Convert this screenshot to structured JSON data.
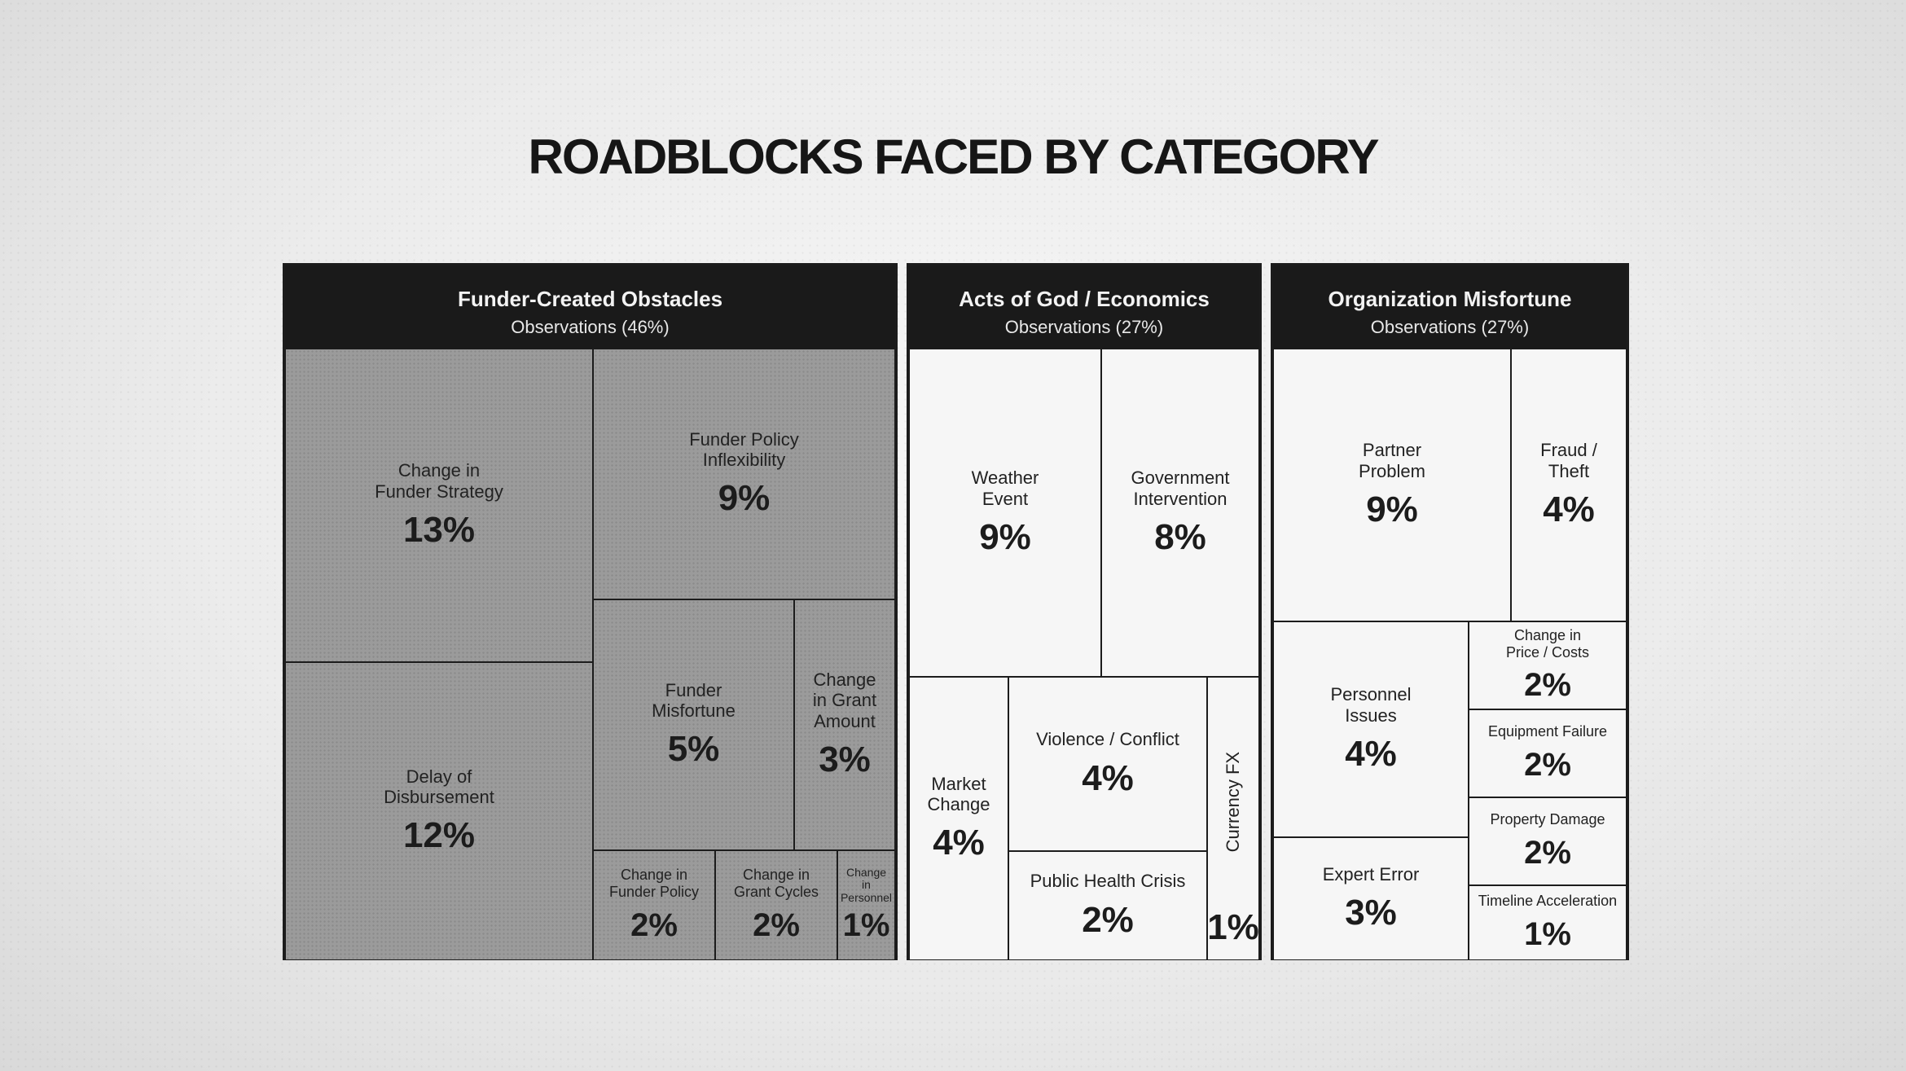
{
  "chart_data": {
    "type": "treemap",
    "title": "ROADBLOCKS FACED BY CATEGORY",
    "groups": [
      {
        "name": "Funder-Created Obstacles",
        "subtitle": "Observations (46%)",
        "value": 46,
        "items": [
          {
            "label": "Change in\nFunder Strategy",
            "value": 13,
            "display": "13%"
          },
          {
            "label": "Delay of\nDisbursement",
            "value": 12,
            "display": "12%"
          },
          {
            "label": "Funder Policy\nInflexibility",
            "value": 9,
            "display": "9%"
          },
          {
            "label": "Funder\nMisfortune",
            "value": 5,
            "display": "5%"
          },
          {
            "label": "Change\nin Grant\nAmount",
            "value": 3,
            "display": "3%"
          },
          {
            "label": "Change in\nFunder Policy",
            "value": 2,
            "display": "2%"
          },
          {
            "label": "Change in\nGrant Cycles",
            "value": 2,
            "display": "2%"
          },
          {
            "label": "Change\nin\nPersonnel",
            "value": 1,
            "display": "1%"
          }
        ]
      },
      {
        "name": "Acts of God / Economics",
        "subtitle": "Observations (27%)",
        "value": 27,
        "items": [
          {
            "label": "Weather\nEvent",
            "value": 9,
            "display": "9%"
          },
          {
            "label": "Government\nIntervention",
            "value": 8,
            "display": "8%"
          },
          {
            "label": "Market\nChange",
            "value": 4,
            "display": "4%"
          },
          {
            "label": "Violence / Conflict",
            "value": 4,
            "display": "4%"
          },
          {
            "label": "Public Health Crisis",
            "value": 2,
            "display": "2%"
          },
          {
            "label": "Currency FX",
            "value": 1,
            "display": "1%"
          }
        ]
      },
      {
        "name": "Organization Misfortune",
        "subtitle": "Observations (27%)",
        "value": 27,
        "items": [
          {
            "label": "Partner\nProblem",
            "value": 9,
            "display": "9%"
          },
          {
            "label": "Fraud /\nTheft",
            "value": 4,
            "display": "4%"
          },
          {
            "label": "Personnel\nIssues",
            "value": 4,
            "display": "4%"
          },
          {
            "label": "Change in\nPrice / Costs",
            "value": 2,
            "display": "2%"
          },
          {
            "label": "Equipment Failure",
            "value": 2,
            "display": "2%"
          },
          {
            "label": "Property Damage",
            "value": 2,
            "display": "2%"
          },
          {
            "label": "Expert Error",
            "value": 3,
            "display": "3%"
          },
          {
            "label": "Timeline Acceleration",
            "value": 1,
            "display": "1%"
          }
        ]
      }
    ]
  },
  "colors": {
    "header_bg": "#1a1a1a",
    "funder_cells": "#9b9b9b",
    "other_cells": "#f6f6f6",
    "border": "#1c1c1c"
  }
}
